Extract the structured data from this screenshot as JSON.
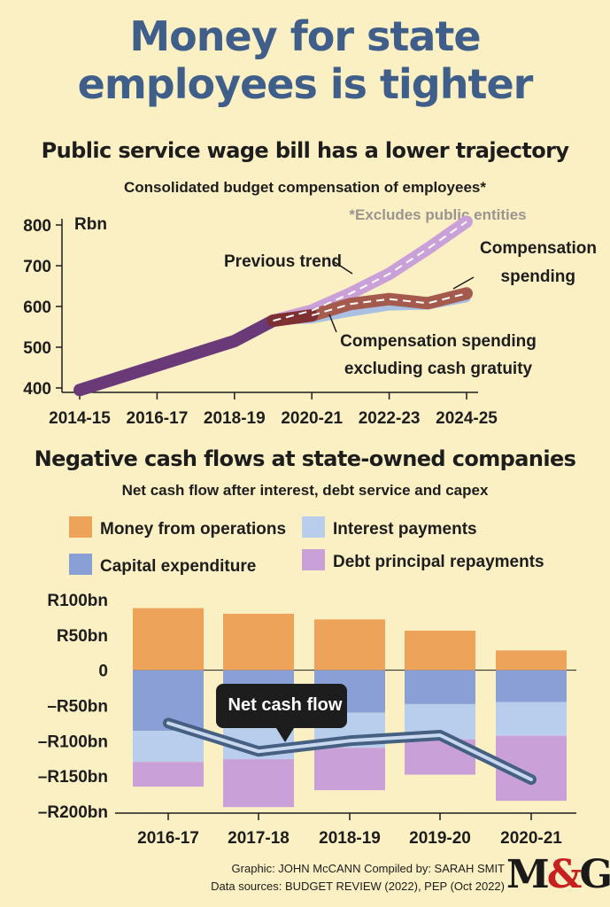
{
  "headline": {
    "line1": "Money for state",
    "line2": "employees is tighter"
  },
  "colors": {
    "background": "#fbefc4",
    "headline": "#3f5f8a",
    "previous_trend": "#c9a0d8",
    "compensation": "#a55a4e",
    "excl_gratuity": "#a9c0e3",
    "history": "#6a3a78",
    "operations": "#eea35a",
    "interest": "#b9cdec",
    "capex": "#8a9fd5",
    "debt": "#c9a0d8",
    "net_line": "#456082"
  },
  "wage_section": {
    "title": "Public service wage bill has a lower trajectory",
    "subtitle": "Consolidated budget compensation of employees*",
    "note": "*Excludes public entities"
  },
  "cash_section": {
    "title": "Negative cash flows at state-owned companies",
    "subtitle": "Net cash flow after interest, debt service and capex"
  },
  "chart_data": [
    {
      "type": "line",
      "title": "Public service wage bill has a lower trajectory",
      "subtitle": "Consolidated budget compensation of employees*",
      "ylabel": "Rbn",
      "ylim": [
        400,
        800
      ],
      "yticks": [
        "800",
        "700",
        "600",
        "500",
        "400"
      ],
      "xticks": [
        "2014-15",
        "2016-17",
        "2018-19",
        "2020-21",
        "2022-23",
        "2024-25"
      ],
      "grid": false,
      "x": [
        2014,
        2015,
        2016,
        2017,
        2018,
        2019,
        2020,
        2021,
        2022,
        2023,
        2024
      ],
      "series": [
        {
          "name": "Previous trend",
          "x": [
            2014,
            2016,
            2018,
            2019,
            2020,
            2021,
            2022,
            2023,
            2024
          ],
          "values": [
            395,
            455,
            515,
            565,
            590,
            632,
            680,
            742,
            808
          ]
        },
        {
          "name": "Compensation spending",
          "x": [
            2019,
            2020,
            2021,
            2022,
            2023,
            2024
          ],
          "values": [
            565,
            578,
            606,
            618,
            608,
            632
          ]
        },
        {
          "name": "Compensation spending excluding cash gratuity",
          "x": [
            2019,
            2020,
            2021,
            2022,
            2023,
            2024
          ],
          "values": [
            565,
            568,
            585,
            600,
            602,
            620
          ]
        }
      ],
      "annotations": [
        {
          "text": "Previous trend"
        },
        {
          "text_lines": [
            "Compensation",
            "spending"
          ]
        },
        {
          "text_lines": [
            "Compensation spending",
            "excluding cash gratuity"
          ]
        }
      ]
    },
    {
      "type": "bar",
      "stacked": true,
      "title": "Negative cash flows at state-owned companies",
      "subtitle": "Net cash flow after interest, debt service and capex",
      "categories": [
        "2016-17",
        "2017-18",
        "2018-19",
        "2019-20",
        "2020-21"
      ],
      "ylim": [
        -200,
        100
      ],
      "yticks": [
        "R100bn",
        "R50bn",
        "0",
        "–R50bn",
        "–R100bn",
        "–R150bn",
        "–R200bn"
      ],
      "legend_position": "top",
      "series": [
        {
          "name": "Money from operations",
          "values": [
            88,
            80,
            72,
            56,
            28
          ]
        },
        {
          "name": "Capital expenditure",
          "values": [
            -86,
            -80,
            -60,
            -48,
            -45
          ]
        },
        {
          "name": "Interest payments",
          "values": [
            -44,
            -46,
            -50,
            -50,
            -48
          ]
        },
        {
          "name": "Debt principal repayments",
          "values": [
            -35,
            -68,
            -60,
            -50,
            -92
          ]
        }
      ],
      "net_cash_flow": {
        "name": "Net cash flow",
        "values": [
          -75,
          -115,
          -100,
          -92,
          -155
        ]
      }
    }
  ],
  "credits": {
    "line1": "Graphic: JOHN McCANN  Compiled by: SARAH SMIT",
    "line2": "Data sources: BUDGET REVIEW (2022), PEP (Oct 2022)",
    "logo_m": "M",
    "logo_amp": "&",
    "logo_g": "G"
  }
}
